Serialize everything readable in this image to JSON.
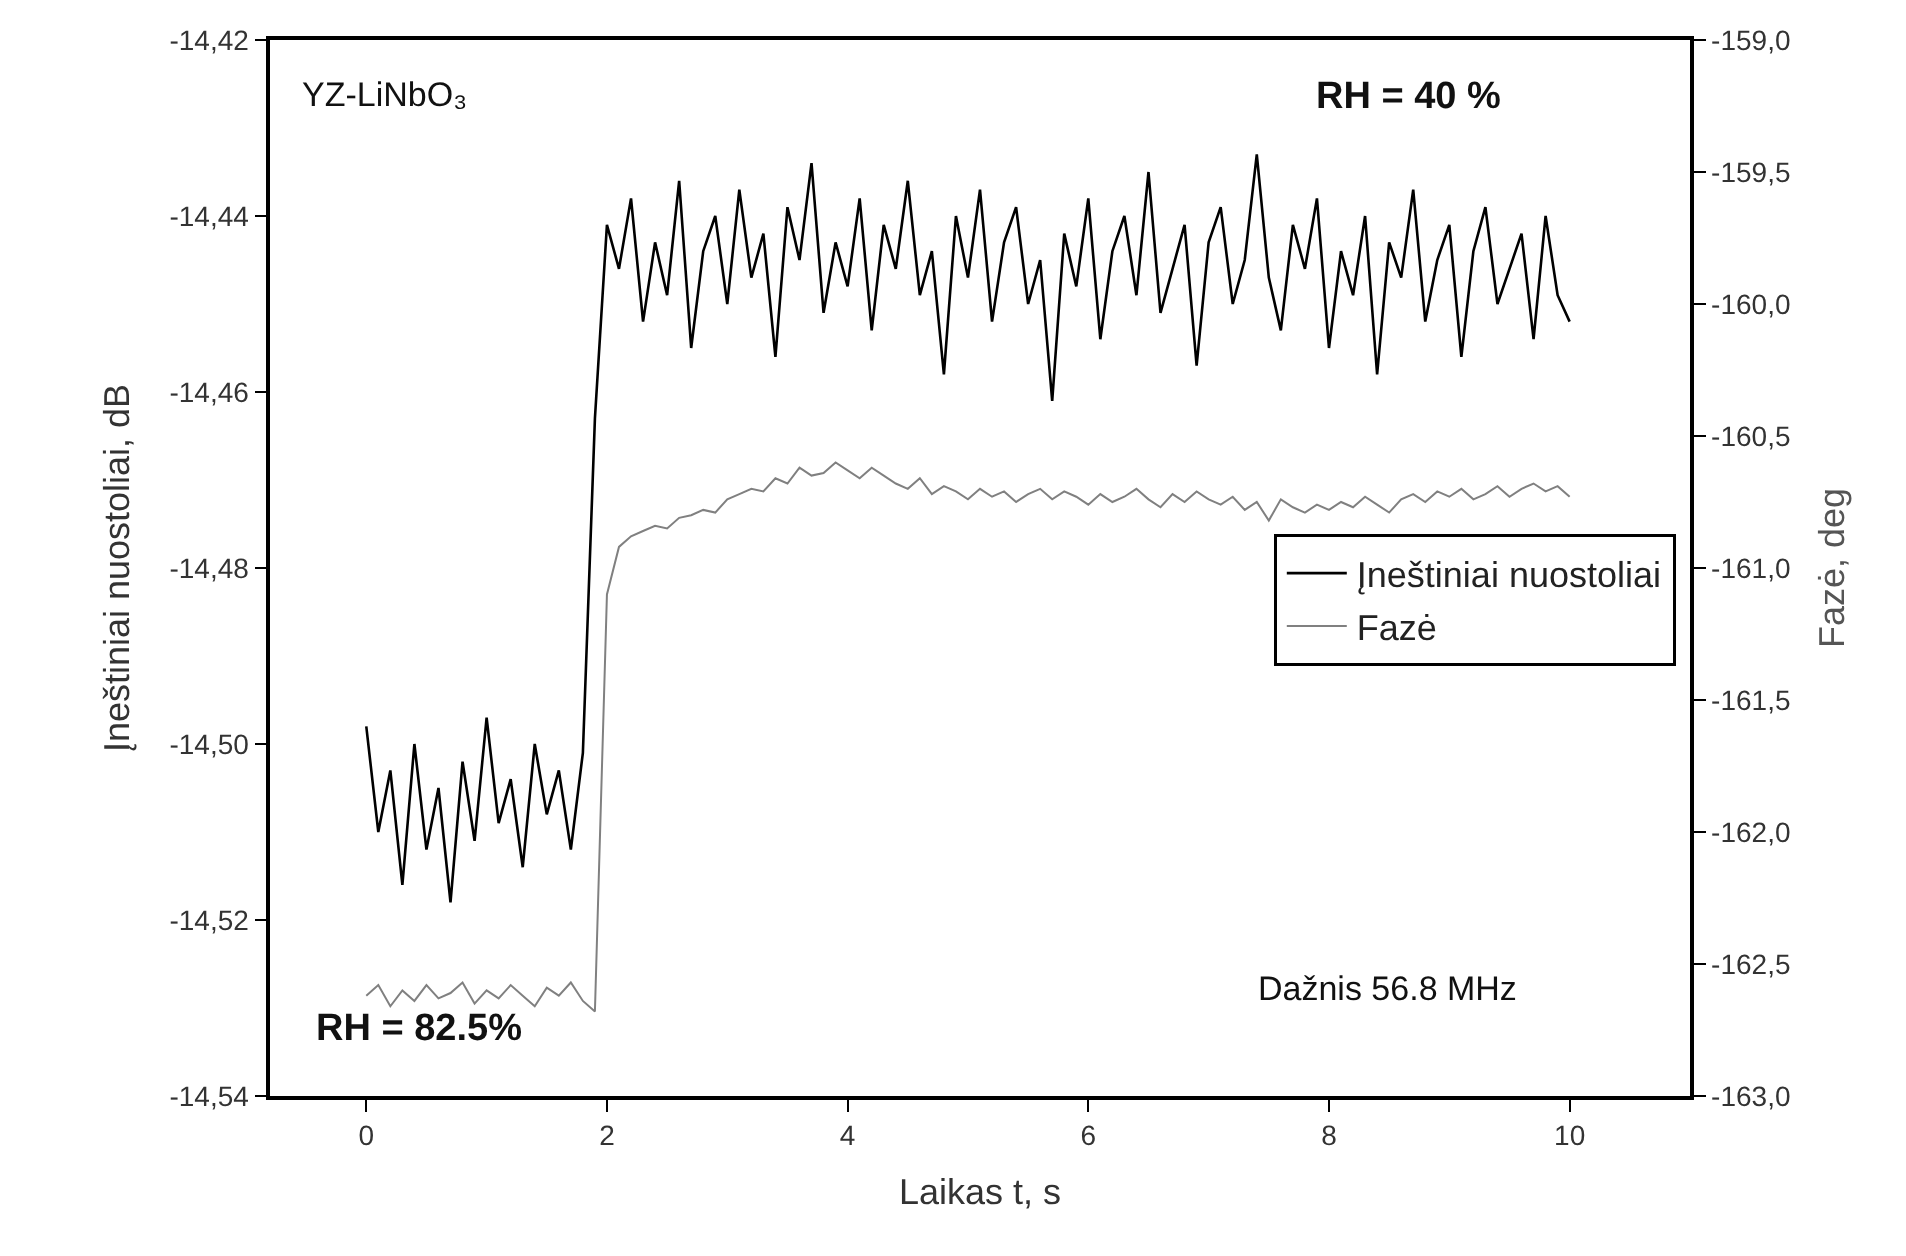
{
  "chart_data": {
    "type": "line",
    "xlabel": "Laikas t, s",
    "ylabel": "Įneštiniai nuostoliai, dB",
    "y2label": "Fazė, deg",
    "annotations": [
      "YZ-LiNbO₃",
      "RH = 40 %",
      "RH = 82.5%",
      "Dažnis 56.8 MHz"
    ],
    "x": [
      0,
      0.1,
      0.2,
      0.3,
      0.4,
      0.5,
      0.6,
      0.7,
      0.8,
      0.9,
      1,
      1.1,
      1.2,
      1.3,
      1.4,
      1.5,
      1.6,
      1.7,
      1.8,
      1.9,
      2,
      2.1,
      2.2,
      2.3,
      2.4,
      2.5,
      2.6,
      2.7,
      2.8,
      2.9,
      3,
      3.1,
      3.2,
      3.3,
      3.4,
      3.5,
      3.6,
      3.7,
      3.8,
      3.9,
      4,
      4.1,
      4.2,
      4.3,
      4.4,
      4.5,
      4.6,
      4.7,
      4.8,
      4.9,
      5,
      5.1,
      5.2,
      5.3,
      5.4,
      5.5,
      5.6,
      5.7,
      5.8,
      5.9,
      6,
      6.1,
      6.2,
      6.3,
      6.4,
      6.5,
      6.6,
      6.7,
      6.8,
      6.9,
      7,
      7.1,
      7.2,
      7.3,
      7.4,
      7.5,
      7.6,
      7.7,
      7.8,
      7.9,
      8,
      8.1,
      8.2,
      8.3,
      8.4,
      8.5,
      8.6,
      8.7,
      8.8,
      8.9,
      9,
      9.1,
      9.2,
      9.3,
      9.4,
      9.5,
      9.6,
      9.7,
      9.8,
      9.9,
      10
    ],
    "series": [
      {
        "name": "Įneštiniai nuostoliai",
        "color": "#000000",
        "values": [
          -14.498,
          -14.51,
          -14.503,
          -14.516,
          -14.5,
          -14.512,
          -14.505,
          -14.518,
          -14.502,
          -14.511,
          -14.497,
          -14.509,
          -14.504,
          -14.514,
          -14.5,
          -14.508,
          -14.503,
          -14.512,
          -14.501,
          -14.463,
          -14.441,
          -14.446,
          -14.438,
          -14.452,
          -14.443,
          -14.449,
          -14.436,
          -14.455,
          -14.444,
          -14.44,
          -14.45,
          -14.437,
          -14.447,
          -14.442,
          -14.456,
          -14.439,
          -14.445,
          -14.434,
          -14.451,
          -14.443,
          -14.448,
          -14.438,
          -14.453,
          -14.441,
          -14.446,
          -14.436,
          -14.449,
          -14.444,
          -14.458,
          -14.44,
          -14.447,
          -14.437,
          -14.452,
          -14.443,
          -14.439,
          -14.45,
          -14.445,
          -14.461,
          -14.442,
          -14.448,
          -14.438,
          -14.454,
          -14.444,
          -14.44,
          -14.449,
          -14.435,
          -14.451,
          -14.446,
          -14.441,
          -14.457,
          -14.443,
          -14.439,
          -14.45,
          -14.445,
          -14.433,
          -14.447,
          -14.453,
          -14.441,
          -14.446,
          -14.438,
          -14.455,
          -14.444,
          -14.449,
          -14.44,
          -14.458,
          -14.443,
          -14.447,
          -14.437,
          -14.452,
          -14.445,
          -14.441,
          -14.456,
          -14.444,
          -14.439,
          -14.45,
          -14.446,
          -14.442,
          -14.454,
          -14.44,
          -14.449,
          -14.452
        ]
      },
      {
        "name": "Fazė",
        "color": "#808080",
        "axis": "y2",
        "values": [
          -162.62,
          -162.58,
          -162.66,
          -162.6,
          -162.64,
          -162.58,
          -162.63,
          -162.61,
          -162.57,
          -162.65,
          -162.6,
          -162.63,
          -162.58,
          -162.62,
          -162.66,
          -162.59,
          -162.62,
          -162.57,
          -162.64,
          -162.68,
          -161.1,
          -160.92,
          -160.88,
          -160.86,
          -160.84,
          -160.85,
          -160.81,
          -160.8,
          -160.78,
          -160.79,
          -160.74,
          -160.72,
          -160.7,
          -160.71,
          -160.66,
          -160.68,
          -160.62,
          -160.65,
          -160.64,
          -160.6,
          -160.63,
          -160.66,
          -160.62,
          -160.65,
          -160.68,
          -160.7,
          -160.66,
          -160.72,
          -160.69,
          -160.71,
          -160.74,
          -160.7,
          -160.73,
          -160.71,
          -160.75,
          -160.72,
          -160.7,
          -160.74,
          -160.71,
          -160.73,
          -160.76,
          -160.72,
          -160.75,
          -160.73,
          -160.7,
          -160.74,
          -160.77,
          -160.72,
          -160.75,
          -160.71,
          -160.74,
          -160.76,
          -160.73,
          -160.78,
          -160.75,
          -160.82,
          -160.74,
          -160.77,
          -160.79,
          -160.76,
          -160.78,
          -160.75,
          -160.77,
          -160.73,
          -160.76,
          -160.79,
          -160.74,
          -160.72,
          -160.75,
          -160.71,
          -160.73,
          -160.7,
          -160.74,
          -160.72,
          -160.69,
          -160.73,
          -160.7,
          -160.68,
          -160.71,
          -160.69,
          -160.73
        ]
      }
    ],
    "xlim": [
      -0.8,
      11
    ],
    "xticks": [
      0,
      2,
      4,
      6,
      8,
      10
    ],
    "ylim": [
      -14.54,
      -14.42
    ],
    "yticks": [
      {
        "value": -14.54,
        "label": "-14,54"
      },
      {
        "value": -14.52,
        "label": "-14,52"
      },
      {
        "value": -14.5,
        "label": "-14,50"
      },
      {
        "value": -14.48,
        "label": "-14,48"
      },
      {
        "value": -14.46,
        "label": "-14,46"
      },
      {
        "value": -14.44,
        "label": "-14,44"
      },
      {
        "value": -14.42,
        "label": "-14,42"
      }
    ],
    "y2lim": [
      -163,
      -159
    ],
    "y2ticks": [
      {
        "value": -163,
        "label": "-163,0"
      },
      {
        "value": -162.5,
        "label": "-162,5"
      },
      {
        "value": -162,
        "label": "-162,0"
      },
      {
        "value": -161.5,
        "label": "-161,5"
      },
      {
        "value": -161,
        "label": "-161,0"
      },
      {
        "value": -160.5,
        "label": "-160,5"
      },
      {
        "value": -160,
        "label": "-160,0"
      },
      {
        "value": -159.5,
        "label": "-159,5"
      },
      {
        "value": -159,
        "label": "-159,0"
      }
    ],
    "legend": "right",
    "marker": "none",
    "line_style": "solid"
  }
}
